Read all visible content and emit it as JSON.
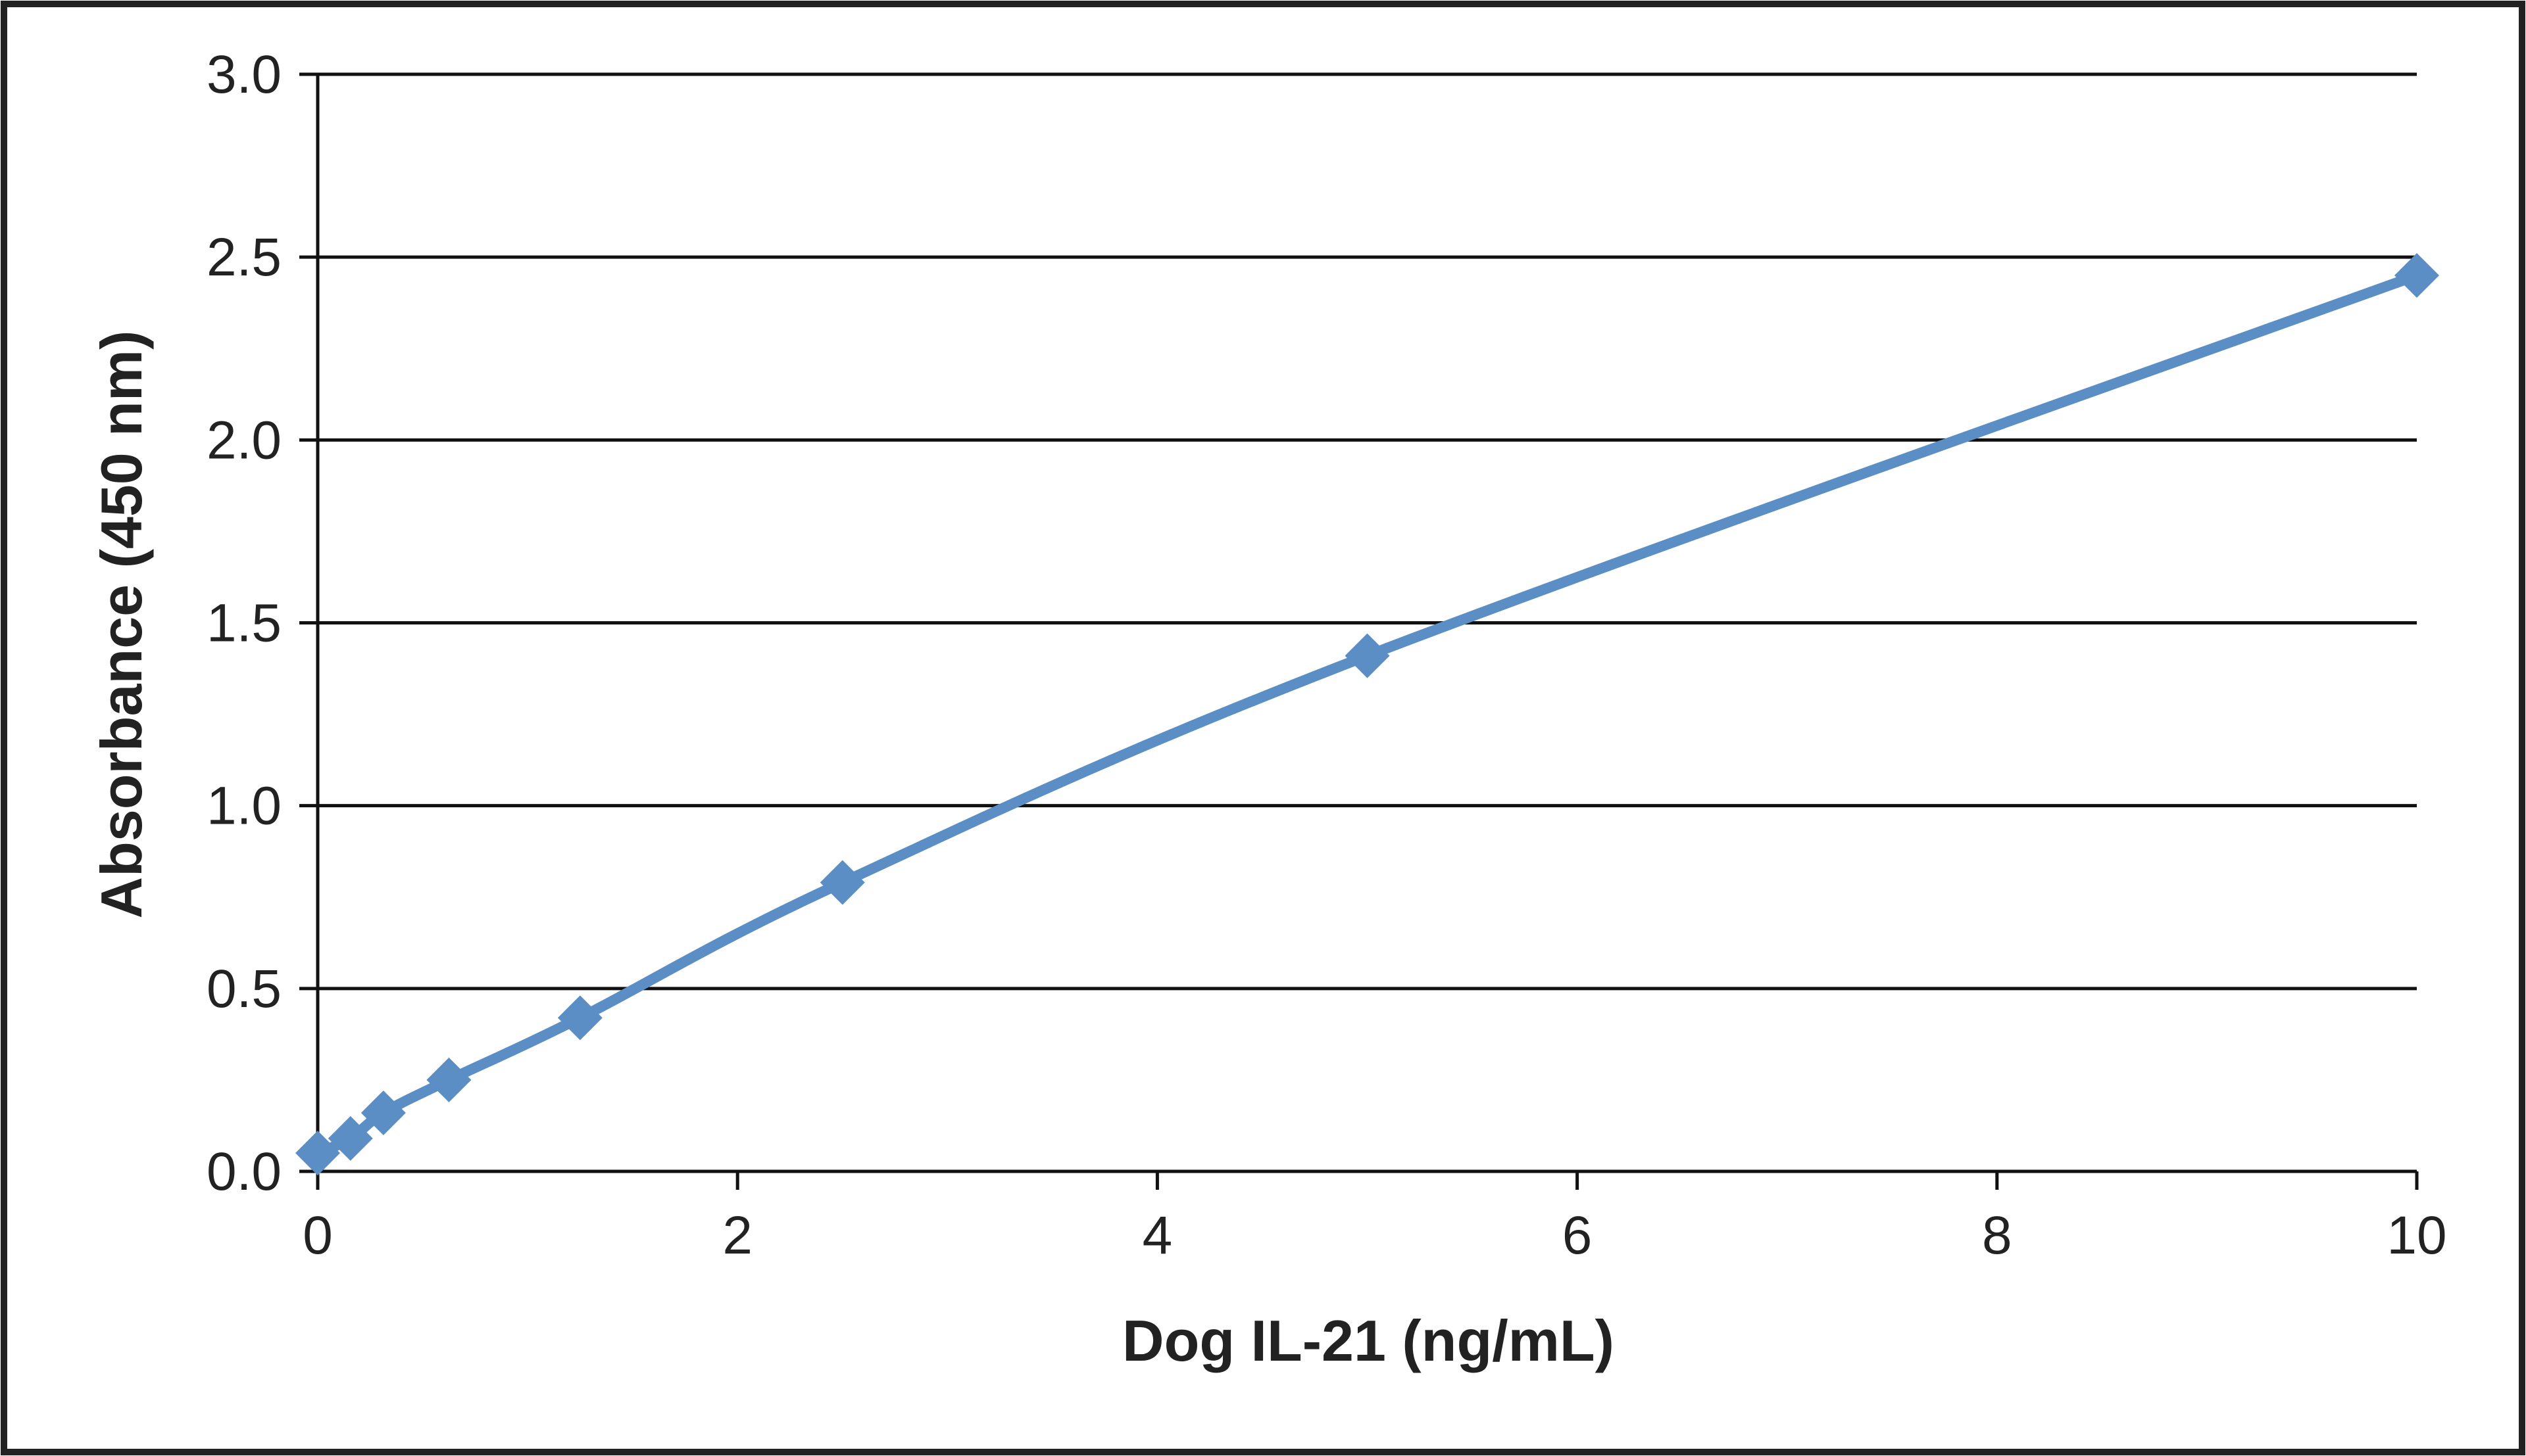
{
  "chart_data": {
    "type": "line",
    "title": "",
    "xlabel": "Dog IL-21 (ng/mL)",
    "ylabel": "Absorbance  (450  nm)",
    "xlim": [
      0,
      10
    ],
    "ylim": [
      0,
      3
    ],
    "x_ticks": [
      "0",
      "2",
      "4",
      "6",
      "8",
      "10"
    ],
    "y_ticks": [
      "0.0",
      "0.5",
      "1.0",
      "1.5",
      "2.0",
      "2.5",
      "3.0"
    ],
    "grid": "horizontal",
    "legend": "none",
    "series": [
      {
        "color": "#5b8ec4",
        "marker": "diamond",
        "x": [
          0,
          0.156,
          0.313,
          0.625,
          1.25,
          2.5,
          5,
          10
        ],
        "y": [
          0.05,
          0.09,
          0.16,
          0.25,
          0.42,
          0.79,
          1.41,
          2.45
        ]
      }
    ]
  }
}
